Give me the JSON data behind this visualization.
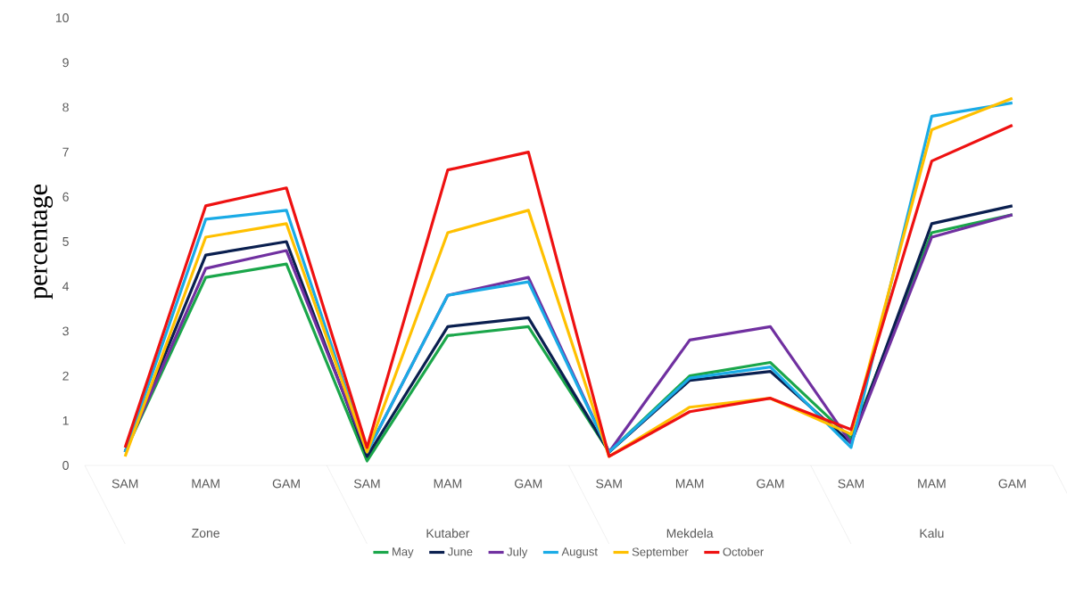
{
  "chart_data": {
    "type": "line",
    "ylabel": "percentage",
    "categories": [
      "SAM",
      "MAM",
      "GAM",
      "SAM",
      "MAM",
      "GAM",
      "SAM",
      "MAM",
      "GAM",
      "SAM",
      "MAM",
      "GAM"
    ],
    "annotations": [
      "Zone",
      "Kutaber",
      "Mekdela",
      "Kalu"
    ],
    "series": [
      {
        "name": "May",
        "color": "#1aa64a",
        "values": [
          0.3,
          4.2,
          4.5,
          0.1,
          2.9,
          3.1,
          0.3,
          2.0,
          2.3,
          0.6,
          5.2,
          5.6
        ]
      },
      {
        "name": "June",
        "color": "#0a1f4f",
        "values": [
          0.3,
          4.7,
          5.0,
          0.2,
          3.1,
          3.3,
          0.3,
          1.9,
          2.1,
          0.5,
          5.4,
          5.8
        ]
      },
      {
        "name": "July",
        "color": "#7030a0",
        "values": [
          0.3,
          4.4,
          4.8,
          0.3,
          3.8,
          4.2,
          0.3,
          2.8,
          3.1,
          0.5,
          5.1,
          5.6
        ]
      },
      {
        "name": "August",
        "color": "#1aabe6",
        "values": [
          0.3,
          5.5,
          5.7,
          0.3,
          3.8,
          4.1,
          0.3,
          1.95,
          2.2,
          0.4,
          7.8,
          8.1
        ]
      },
      {
        "name": "September",
        "color": "#ffc000",
        "values": [
          0.2,
          5.1,
          5.4,
          0.3,
          5.2,
          5.7,
          0.2,
          1.3,
          1.5,
          0.7,
          7.5,
          8.2
        ]
      },
      {
        "name": "October",
        "color": "#ee1111",
        "values": [
          0.4,
          5.8,
          6.2,
          0.4,
          6.6,
          7.0,
          0.2,
          1.2,
          1.5,
          0.8,
          6.8,
          7.6
        ]
      }
    ],
    "ylim": [
      0,
      10
    ],
    "yticks": [
      0,
      1,
      2,
      3,
      4,
      5,
      6,
      7,
      8,
      9,
      10
    ],
    "legend": "bottom",
    "grid": false,
    "marker": "none",
    "line_style": "solid"
  }
}
